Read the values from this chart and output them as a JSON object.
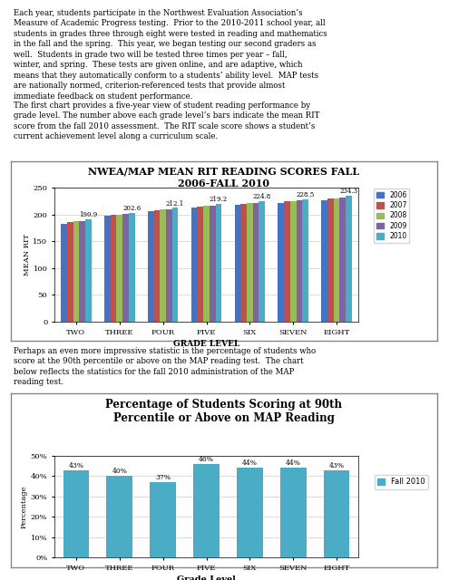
{
  "page_bg": "#ffffff",
  "text_para1": "Each year, students participate in the Northwest Evaluation Association’s Measure of Academic Progress testing.  Prior to the 2010-2011 school year, all students in grades three through eight were tested in reading and mathematics in the fall and the spring.  This year, we began testing our second graders as well.  Students in grade two will be tested three times per year – fall, winter, and spring.  These tests are given online, and are adaptive, which means that they automatically conform to a students’ ability level.  MAP tests are nationally normed, criterion-referenced tests that provide almost immediate feedback on student performance.",
  "text_para2": "The first chart provides a five-year view of student reading performance by grade level. The number above each grade level’s bars indicate the mean RIT score from the fall 2010 assessment.  The RIT scale score shows a student’s current achievement level along a curriculum scale.",
  "text_para3": "Perhaps an even more impressive statistic is the percentage of students who score at the 90th percentile or above on the MAP reading test.  The chart below reflects the statistics for the fall 2010 administration of the MAP reading test.",
  "chart1_title": "NWEA/MAP MEAN RIT READING SCORES FALL\n2006-FALL 2010",
  "chart1_grades": [
    "TWO",
    "THREE",
    "FOUR",
    "FIVE",
    "SIX",
    "SEVEN",
    "EIGHT"
  ],
  "chart1_years": [
    "2006",
    "2007",
    "2008",
    "2009",
    "2010"
  ],
  "chart1_colors": [
    "#4472c4",
    "#c0504d",
    "#9bbb59",
    "#8064a2",
    "#4bacc6"
  ],
  "chart1_data": {
    "TWO": [
      183,
      186,
      187,
      188,
      190.9
    ],
    "THREE": [
      197,
      199,
      200,
      201,
      202.6
    ],
    "FOUR": [
      206,
      208,
      209,
      210,
      212.1
    ],
    "FIVE": [
      213,
      215,
      216,
      217,
      219.2
    ],
    "SIX": [
      218,
      220,
      221,
      222,
      224.8
    ],
    "SEVEN": [
      222,
      224,
      225,
      226,
      228.5
    ],
    "EIGHT": [
      227,
      229,
      230,
      232,
      234.3
    ]
  },
  "chart1_annotations": [
    190.9,
    202.6,
    212.1,
    219.2,
    224.8,
    228.5,
    234.3
  ],
  "chart1_ylabel": "MEAN RIT",
  "chart1_xlabel": "GRADE LEVEL",
  "chart1_ylim": [
    0,
    250
  ],
  "chart1_yticks": [
    0,
    50,
    100,
    150,
    200,
    250
  ],
  "chart2_title": "Percentage of Students Scoring at 90th\nPercentile or Above on MAP Reading",
  "chart2_grades": [
    "TWO",
    "THREE",
    "FOUR",
    "FIVE",
    "SIX",
    "SEVEN",
    "EIGHT"
  ],
  "chart2_values": [
    43,
    40,
    37,
    46,
    44,
    44,
    43
  ],
  "chart2_color": "#4bacc6",
  "chart2_ylabel": "Percentage",
  "chart2_xlabel": "Grade Level",
  "chart2_ylim": [
    0,
    50
  ],
  "chart2_yticks": [
    0,
    10,
    20,
    30,
    40,
    50
  ],
  "chart2_legend_label": "Fall 2010",
  "fig_width": 4.95,
  "fig_height": 6.4,
  "dpi": 100
}
